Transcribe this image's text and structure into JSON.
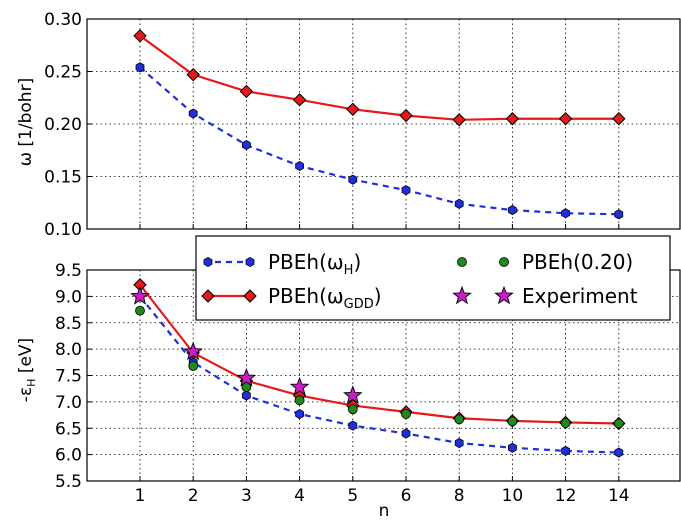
{
  "chart_data": [
    {
      "type": "line",
      "x_categories": [
        "1",
        "2",
        "3",
        "4",
        "5",
        "6",
        "8",
        "10",
        "12",
        "14"
      ],
      "xlabel": "",
      "ylabel": "ω [1/bohr]",
      "ylim": [
        0.1,
        0.3
      ],
      "yticks": [
        "0.10",
        "0.15",
        "0.20",
        "0.25",
        "0.30"
      ],
      "grid": true,
      "series": [
        {
          "key": "pbeh_h",
          "color": "#1f2fe0",
          "style": "dashed",
          "marker": "hexagon",
          "values": [
            0.254,
            0.21,
            0.18,
            0.16,
            0.147,
            0.137,
            0.124,
            0.118,
            0.115,
            0.114
          ]
        },
        {
          "key": "pbeh_gdd",
          "color": "#e6191b",
          "style": "solid",
          "marker": "diamond",
          "values": [
            0.284,
            0.247,
            0.231,
            0.223,
            0.214,
            0.208,
            0.204,
            0.205,
            0.205,
            0.205
          ]
        }
      ]
    },
    {
      "type": "line",
      "x_categories": [
        "1",
        "2",
        "3",
        "4",
        "5",
        "6",
        "8",
        "10",
        "12",
        "14"
      ],
      "xlabel": "n",
      "ylabel": "-εH [eV]",
      "ylim": [
        5.5,
        9.5
      ],
      "yticks": [
        "5.5",
        "6.0",
        "6.5",
        "7.0",
        "7.5",
        "8.0",
        "8.5",
        "9.0",
        "9.5"
      ],
      "grid": true,
      "legend_position": "top-right",
      "series": [
        {
          "key": "pbeh_h",
          "name": "PBEh(ωH)",
          "color": "#1f2fe0",
          "style": "dashed",
          "marker": "hexagon",
          "values": [
            9.0,
            7.75,
            7.12,
            6.77,
            6.55,
            6.4,
            6.22,
            6.13,
            6.07,
            6.04
          ]
        },
        {
          "key": "pbeh_gdd",
          "name": "PBEh(ωGDD)",
          "color": "#e6191b",
          "style": "solid",
          "marker": "diamond",
          "values": [
            9.22,
            7.93,
            7.4,
            7.12,
            6.93,
            6.81,
            6.69,
            6.64,
            6.61,
            6.59
          ]
        },
        {
          "key": "pbeh_020",
          "name": "PBEh(0.20)",
          "color": "#1e8a1e",
          "style": "none",
          "marker": "circle",
          "values": [
            8.73,
            7.68,
            7.28,
            7.03,
            6.86,
            6.77,
            6.67,
            6.63,
            6.6,
            6.59
          ]
        },
        {
          "key": "experiment",
          "name": "Experiment",
          "color": "#c81ec8",
          "style": "none",
          "marker": "star",
          "points": [
            [
              0,
              9.0
            ],
            [
              1,
              7.95
            ],
            [
              2,
              7.45
            ],
            [
              3,
              7.28
            ],
            [
              4,
              7.12
            ]
          ]
        }
      ]
    }
  ],
  "legend": {
    "items": [
      {
        "key": "pbeh_h",
        "base": "PBEh(ω",
        "sub": "H",
        "tail": ")"
      },
      {
        "key": "pbeh_gdd",
        "base": "PBEh(ω",
        "sub": "GDD",
        "tail": ")"
      },
      {
        "key": "pbeh_020",
        "base": "PBEh(0.20)",
        "sub": "",
        "tail": ""
      },
      {
        "key": "experiment",
        "base": "Experiment",
        "sub": "",
        "tail": ""
      }
    ]
  },
  "axis_text": {
    "top_ylabel": "ω [1/bohr]",
    "bottom_ylabel_base": "-ε",
    "bottom_ylabel_sub": "H",
    "bottom_ylabel_tail": " [eV]",
    "xlabel": "n"
  }
}
